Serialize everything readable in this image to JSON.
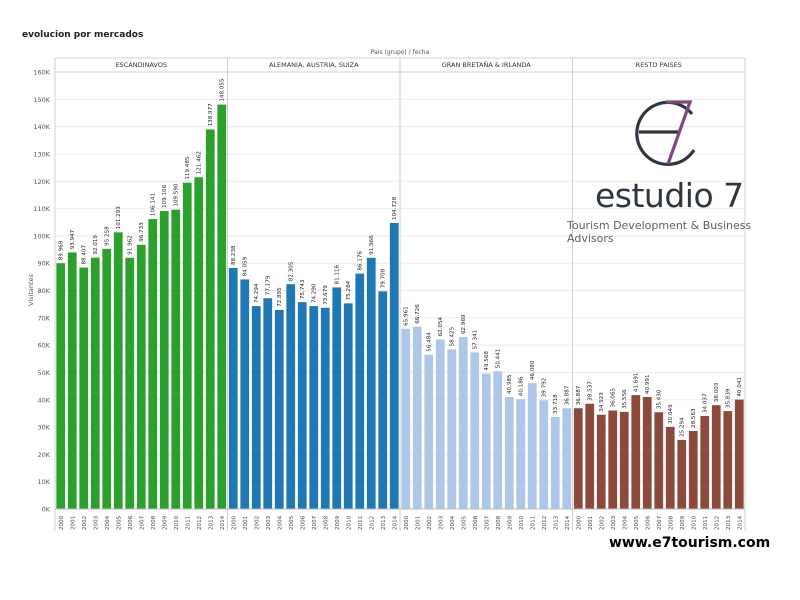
{
  "title": "evolucion por mercados",
  "logo": {
    "brand": "estudio 7",
    "tagline": "Tourism Development & Business Advisors"
  },
  "website": "www.e7tourism.com",
  "chart_data": {
    "type": "bar",
    "header": "País (grupo)  /  fecha",
    "ylabel": "Visitantes",
    "ylim": [
      0,
      160000
    ],
    "yticks": [
      0,
      10000,
      20000,
      30000,
      40000,
      50000,
      60000,
      70000,
      80000,
      90000,
      100000,
      110000,
      120000,
      130000,
      140000,
      150000,
      160000
    ],
    "ytick_labels": [
      "0K",
      "10K",
      "20K",
      "30K",
      "40K",
      "50K",
      "60K",
      "70K",
      "80K",
      "90K",
      "100K",
      "110K",
      "120K",
      "130K",
      "140K",
      "150K",
      "160K"
    ],
    "grid": true,
    "years": [
      "2000",
      "2001",
      "2002",
      "2003",
      "2004",
      "2005",
      "2006",
      "2007",
      "2008",
      "2009",
      "2010",
      "2011",
      "2012",
      "2013",
      "2014"
    ],
    "groups": [
      {
        "name": "ESCANDINAVOS",
        "color": "#2ca02c",
        "values": [
          89969,
          93947,
          88407,
          92019,
          95258,
          101293,
          91962,
          96733,
          106141,
          109106,
          109590,
          119485,
          121462,
          138977,
          148055
        ],
        "labels": [
          "89.969",
          "93.947",
          "88.407",
          "92.019",
          "95.258",
          "101.293",
          "91.962",
          "96.733",
          "106.141",
          "109.106",
          "109.590",
          "119.485",
          "121.462",
          "138.977",
          "148.055"
        ]
      },
      {
        "name": "ALEMANIA, AUSTRIA, SUIZA",
        "color": "#1f77b4",
        "values": [
          88238,
          84059,
          74294,
          77179,
          72895,
          82305,
          75743,
          74290,
          73679,
          81116,
          75284,
          86176,
          91966,
          79708,
          104728
        ],
        "labels": [
          "88.238",
          "84.059",
          "74.294",
          "77.179",
          "72.895",
          "82.305",
          "75.743",
          "74.290",
          "73.679",
          "81.116",
          "75.284",
          "86.176",
          "91.966",
          "79.708",
          "104.728"
        ]
      },
      {
        "name": "GRAN BRETAÑA & IRLANDA",
        "color": "#aec7e8",
        "values": [
          65961,
          66726,
          56484,
          62054,
          58425,
          62969,
          57341,
          49568,
          50441,
          40985,
          40186,
          46080,
          39792,
          33718,
          36887
        ],
        "labels": [
          "65.961",
          "66.726",
          "56.484",
          "62.054",
          "58.425",
          "62.969",
          "57.341",
          "49.568",
          "50.441",
          "40.985",
          "40.186",
          "46.080",
          "39.792",
          "33.718",
          "36.887"
        ]
      },
      {
        "name": "RESTO PAISES",
        "color": "#8c4a3c",
        "values": [
          36887,
          38537,
          34523,
          36065,
          35556,
          41691,
          40991,
          35430,
          30049,
          25294,
          28563,
          34037,
          38003,
          35839,
          40041
        ],
        "labels": [
          "36.887",
          "38.537",
          "34.523",
          "36.065",
          "35.556",
          "41.691",
          "40.991",
          "35.430",
          "30.049",
          "25.294",
          "28.563",
          "34.037",
          "38.003",
          "35.839",
          "40.041"
        ]
      }
    ]
  }
}
